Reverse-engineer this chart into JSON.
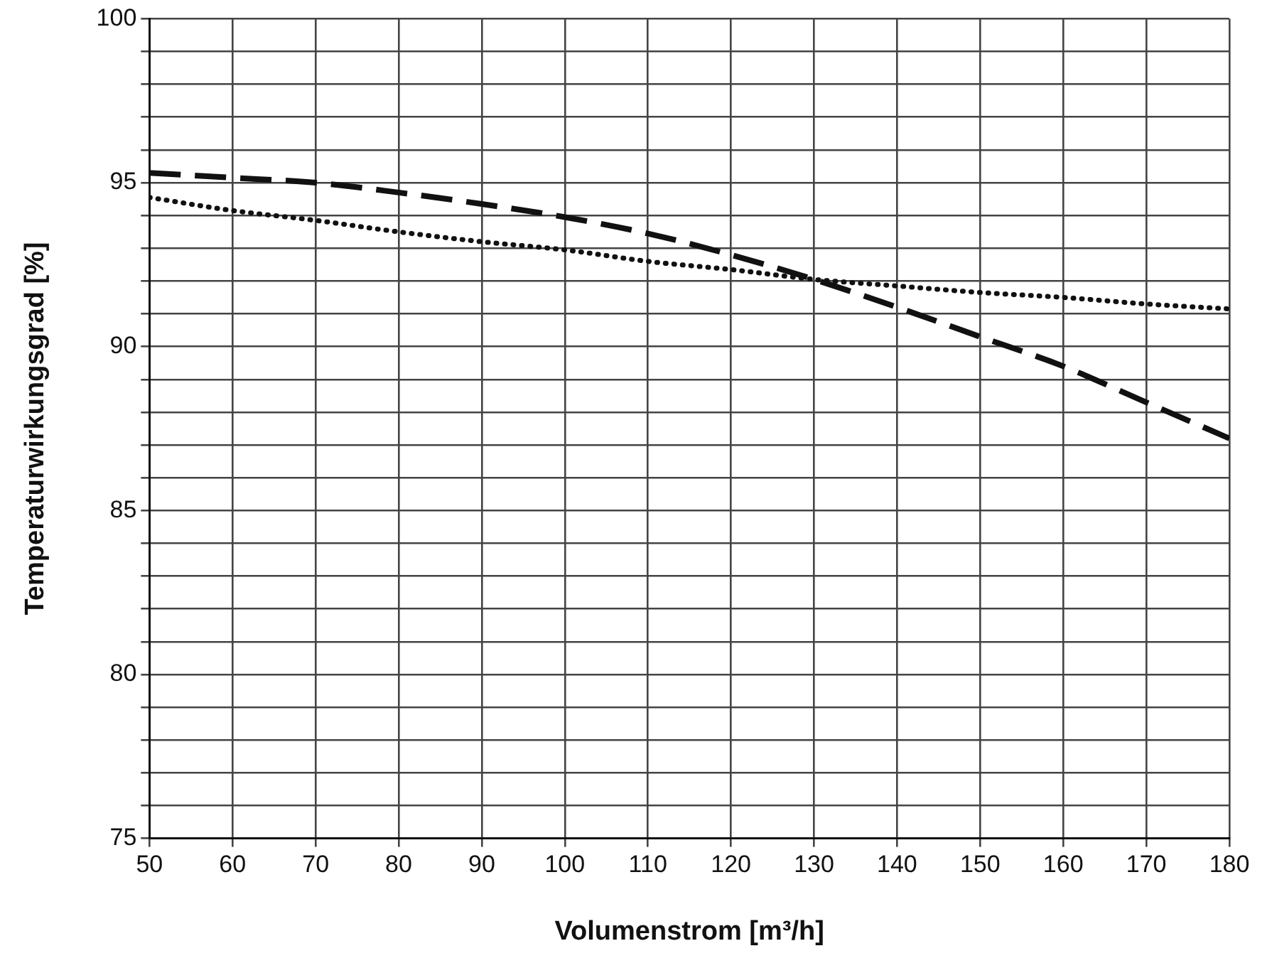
{
  "chart_data": {
    "type": "line",
    "xlabel": "Volumenstrom [m³/h]",
    "ylabel": "Temperaturwirkungsgrad [%]",
    "x": [
      50,
      60,
      70,
      80,
      90,
      100,
      110,
      120,
      130,
      140,
      150,
      160,
      170,
      180
    ],
    "series": [
      {
        "color": "#111111",
        "line_style": "dashed",
        "values": [
          95.3,
          95.15,
          95.0,
          94.7,
          94.35,
          93.95,
          93.45,
          92.8,
          92.05,
          91.2,
          90.3,
          89.4,
          88.3,
          87.2
        ]
      },
      {
        "color": "#111111",
        "line_style": "dotted",
        "values": [
          94.55,
          94.15,
          93.85,
          93.5,
          93.2,
          92.95,
          92.6,
          92.35,
          92.05,
          91.85,
          91.65,
          91.5,
          91.3,
          91.15
        ]
      }
    ],
    "xlim": [
      50,
      180
    ],
    "xticks": [
      50,
      60,
      70,
      80,
      90,
      100,
      110,
      120,
      130,
      140,
      150,
      160,
      170,
      180
    ],
    "ylim": [
      75,
      100
    ],
    "yticks": [
      75,
      {
        "value": 76,
        "label": null
      },
      {
        "value": 77,
        "label": null
      },
      {
        "value": 78,
        "label": null
      },
      {
        "value": 79,
        "label": null
      },
      80,
      {
        "value": 81,
        "label": null
      },
      {
        "value": 82,
        "label": null
      },
      {
        "value": 83,
        "label": null
      },
      {
        "value": 84,
        "label": null
      },
      85,
      {
        "value": 86,
        "label": null
      },
      {
        "value": 87,
        "label": null
      },
      {
        "value": 88,
        "label": null
      },
      {
        "value": 89,
        "label": null
      },
      90,
      {
        "value": 91,
        "label": null
      },
      {
        "value": 92,
        "label": null
      },
      {
        "value": 93,
        "label": null
      },
      {
        "value": 94,
        "label": null
      },
      95,
      {
        "value": 96,
        "label": null
      },
      {
        "value": 97,
        "label": null
      },
      {
        "value": 98,
        "label": null
      },
      {
        "value": 99,
        "label": null
      },
      100
    ],
    "grid": true,
    "legend": false,
    "marker": "none"
  }
}
